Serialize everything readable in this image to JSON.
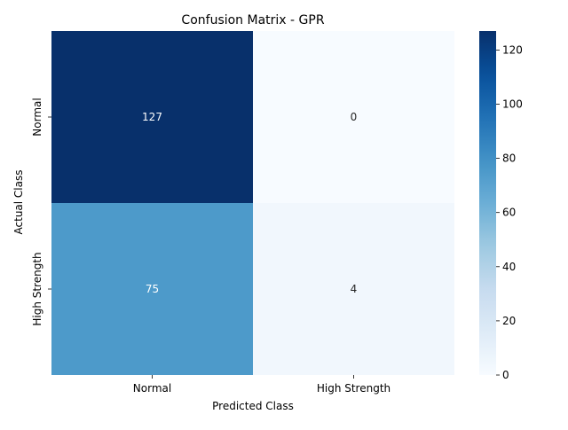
{
  "chart_data": {
    "type": "heatmap",
    "title": "Confusion Matrix - GPR",
    "xlabel": "Predicted Class",
    "ylabel": "Actual Class",
    "x_categories": [
      "Normal",
      "High Strength"
    ],
    "y_categories": [
      "Normal",
      "High Strength"
    ],
    "values": [
      [
        127,
        0
      ],
      [
        75,
        4
      ]
    ],
    "colorbar": {
      "ticks": [
        0,
        20,
        40,
        60,
        80,
        100,
        120
      ],
      "vmin": 0,
      "vmax": 127,
      "colormap": "Blues"
    },
    "grid": false,
    "legend": "colorbar-right"
  }
}
